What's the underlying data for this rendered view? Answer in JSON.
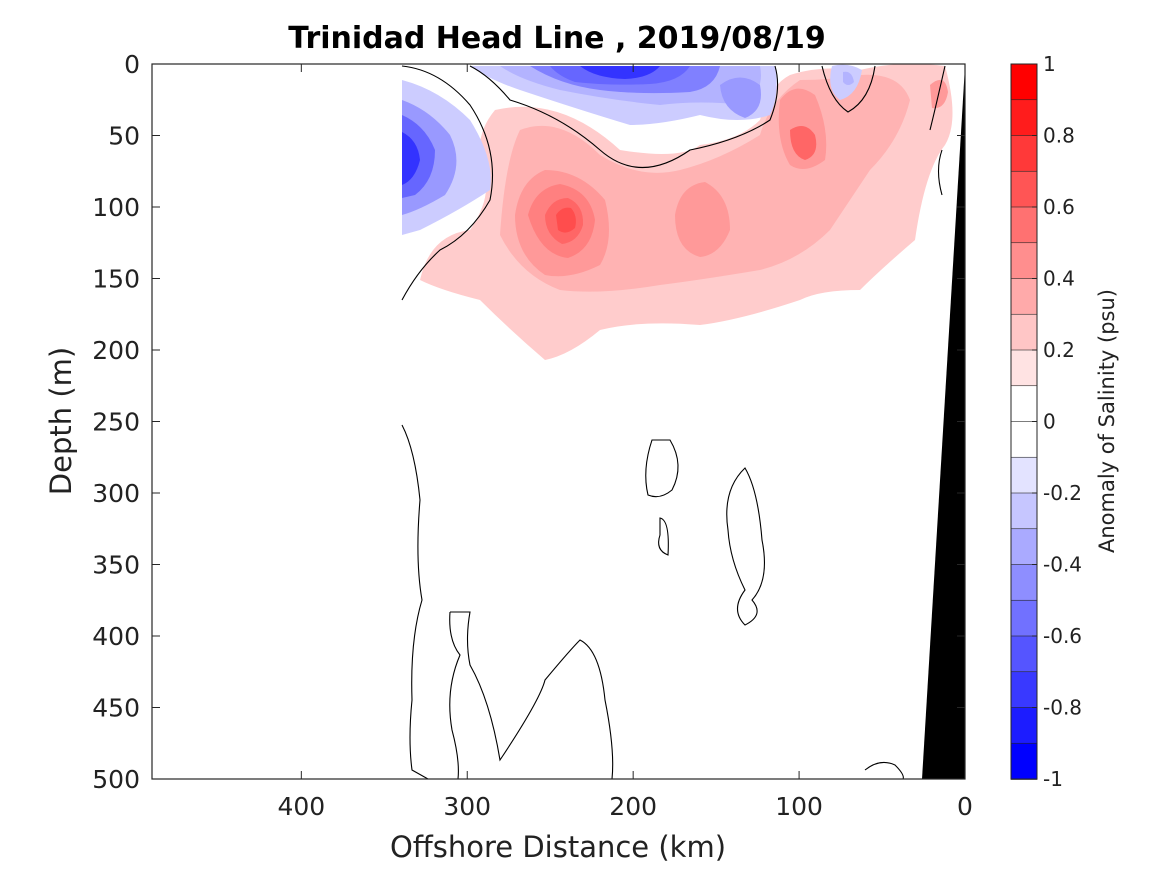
{
  "chart_data": {
    "type": "heatmap",
    "title": "Trinidad Head Line , 2019/08/19",
    "xlabel": "Offshore Distance (km)",
    "ylabel": "Depth (m)",
    "xlim": [
      490,
      0
    ],
    "ylim": [
      0,
      500
    ],
    "x_reversed": true,
    "y_reversed": true,
    "xticks": [
      400,
      300,
      200,
      100,
      0
    ],
    "yticks": [
      0,
      50,
      100,
      150,
      200,
      250,
      300,
      350,
      400,
      450,
      500
    ],
    "colorbar": {
      "label": "Anomaly of Salinity (psu)",
      "clim": [
        -1,
        1
      ],
      "step": 0.1,
      "ticks": [
        1,
        0.8,
        0.6,
        0.4,
        0.2,
        0,
        -0.2,
        -0.4,
        -0.6,
        -0.8,
        -1
      ],
      "colormap": "blue-white-red",
      "low_color": "#0000ff",
      "high_color": "#ff0000"
    },
    "grid": false,
    "contour_level": 0,
    "features": [
      {
        "name": "negative anomaly near surface",
        "x_range": [
          240,
          70
        ],
        "depth_range": [
          0,
          60
        ],
        "min_value": -0.8
      },
      {
        "name": "negative anomaly offshore edge",
        "x_range": [
          340,
          300
        ],
        "depth_range": [
          20,
          120
        ],
        "min_value": -0.7
      },
      {
        "name": "positive anomaly core",
        "x_range": [
          280,
          180
        ],
        "depth_range": [
          70,
          180
        ],
        "max_value": 0.6
      },
      {
        "name": "positive anomaly nearshore",
        "x_range": [
          120,
          60
        ],
        "depth_range": [
          20,
          100
        ],
        "max_value": 0.5
      },
      {
        "name": "bathymetry (seafloor)",
        "x_range": [
          28,
          0
        ],
        "depth_range": [
          0,
          500
        ]
      }
    ]
  }
}
